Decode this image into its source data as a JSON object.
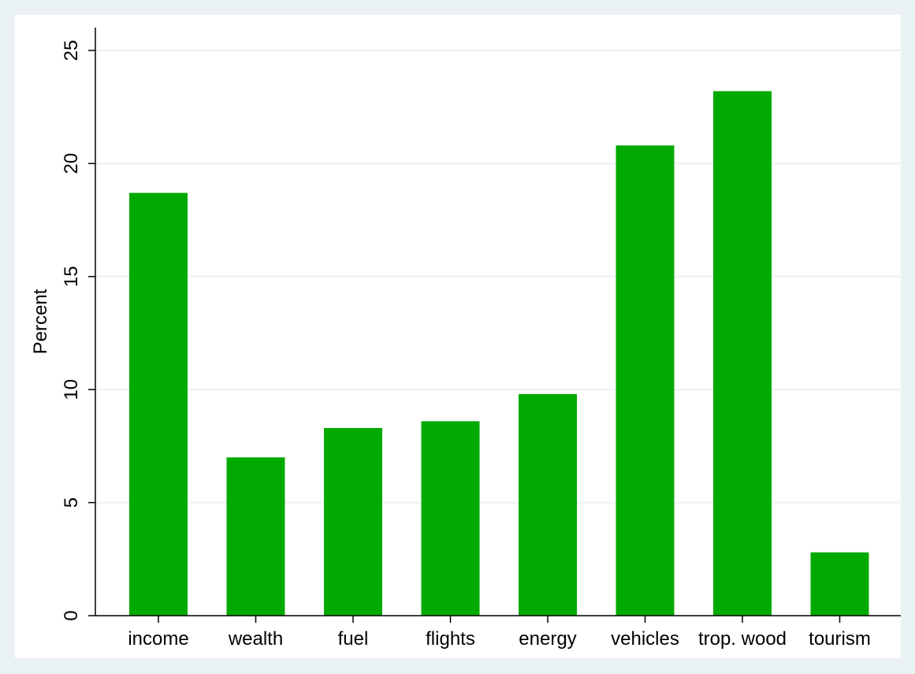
{
  "chart_data": {
    "type": "bar",
    "categories": [
      "income",
      "wealth",
      "fuel",
      "flights",
      "energy",
      "vehicles",
      "trop. wood",
      "tourism"
    ],
    "values": [
      18.7,
      7.0,
      8.3,
      8.6,
      9.8,
      20.8,
      23.2,
      2.8
    ],
    "title": "",
    "xlabel": "",
    "ylabel": "Percent",
    "ylim": [
      0,
      26
    ],
    "yticks": [
      0,
      5,
      10,
      15,
      20,
      25
    ],
    "grid": true,
    "legend": "none",
    "colors": {
      "bar": "#00aa00",
      "outer_background": "#eaf2f3",
      "plot_background": "#ffffff",
      "grid": "#eaf2f3",
      "axis": "#000000"
    }
  }
}
